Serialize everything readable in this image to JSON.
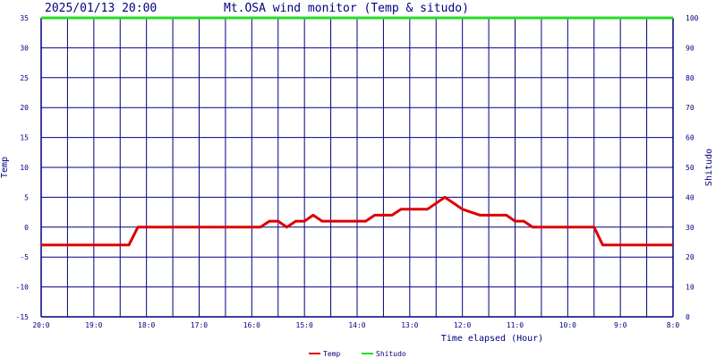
{
  "header": {
    "timestamp": "2025/01/13 20:00",
    "title": "Mt.OSA wind monitor (Temp & situdo)"
  },
  "colors": {
    "axis": "#000080",
    "grid": "#000080",
    "temp": "#dd0000",
    "shitudo": "#22dd22",
    "text": "#000080"
  },
  "chart_data": {
    "type": "line",
    "title": "Mt.OSA wind monitor (Temp & situdo)",
    "xlabel": "Time elapsed (Hour)",
    "ylabel": "Temp",
    "y2label": "Shitudo",
    "x_tick_labels": [
      "20:0",
      "19:0",
      "18:0",
      "17:0",
      "16:0",
      "15:0",
      "14:0",
      "13:0",
      "12:0",
      "11:0",
      "10:0",
      "9:0",
      "8:0"
    ],
    "xlim": [
      0,
      24
    ],
    "x_direction": "hours elapsed increasing to the right",
    "ylim": [
      -15,
      35
    ],
    "y_ticks": [
      -15,
      -10,
      -5,
      0,
      5,
      10,
      15,
      20,
      25,
      30,
      35
    ],
    "y2lim": [
      0,
      100
    ],
    "y2_ticks": [
      0,
      10,
      20,
      30,
      40,
      50,
      60,
      70,
      80,
      90,
      100
    ],
    "grid": true,
    "legend_position": "bottom-center",
    "series": [
      {
        "name": "Temp",
        "axis": "left",
        "x": [
          0,
          3.33,
          3.67,
          8.33,
          8.67,
          9,
          9.33,
          9.67,
          10,
          10.33,
          10.67,
          11,
          12.33,
          12.67,
          13.33,
          13.67,
          14.67,
          15.33,
          15.67,
          16,
          16.67,
          17,
          17.67,
          18,
          18.33,
          18.67,
          21,
          21.33,
          24
        ],
        "values": [
          -3,
          -3,
          0,
          0,
          1,
          1,
          0,
          1,
          1,
          2,
          1,
          1,
          1,
          2,
          2,
          3,
          3,
          5,
          4,
          3,
          2,
          2,
          2,
          1,
          1,
          0,
          0,
          -3,
          -3
        ]
      },
      {
        "name": "Shitudo",
        "axis": "right",
        "x": [
          0,
          24
        ],
        "values": [
          100,
          100
        ]
      }
    ]
  }
}
